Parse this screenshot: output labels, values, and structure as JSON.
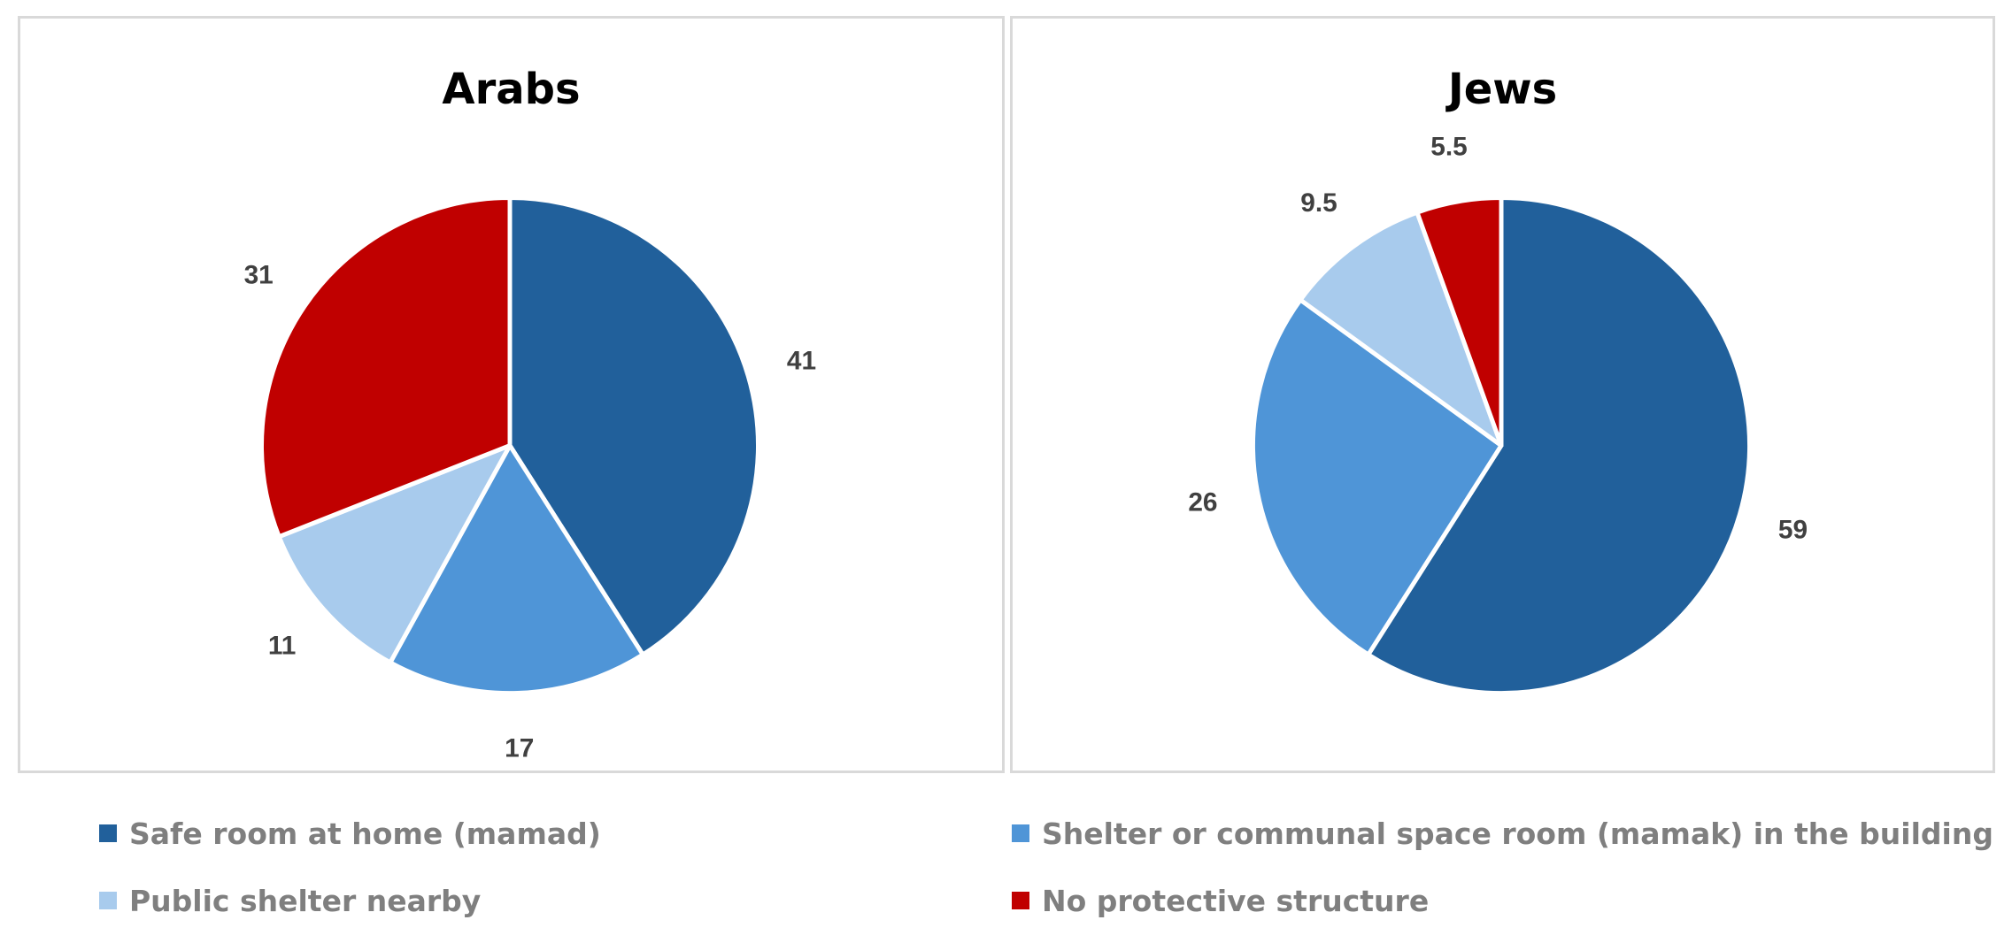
{
  "chart_data": [
    {
      "type": "pie",
      "title": "Arabs",
      "categories": [
        "Safe room at home (mamad)",
        "Shelter or communal space room (mamak) in the building",
        "Public shelter nearby",
        "No protective structure"
      ],
      "values": [
        41,
        17,
        11,
        31
      ],
      "labels": [
        "41",
        "17",
        "11",
        "31"
      ]
    },
    {
      "type": "pie",
      "title": "Jews",
      "categories": [
        "Safe room at home (mamad)",
        "Shelter or communal space room (mamak) in the building",
        "Public shelter nearby",
        "No protective structure"
      ],
      "values": [
        59,
        26,
        9.5,
        5.5
      ],
      "labels": [
        "59",
        "26",
        "9.5",
        "5.5"
      ]
    }
  ],
  "colors": [
    "#21609b",
    "#4f95d7",
    "#a8cbed",
    "#c00000"
  ],
  "legend": {
    "placement": "bottom",
    "items": [
      {
        "label": "Safe room at home (mamad)",
        "color": "#21609b"
      },
      {
        "label": "Shelter or communal space room (mamak) in the building",
        "color": "#4f95d7"
      },
      {
        "label": "Public shelter nearby",
        "color": "#a8cbed"
      },
      {
        "label": "No protective structure",
        "color": "#c00000"
      }
    ]
  }
}
